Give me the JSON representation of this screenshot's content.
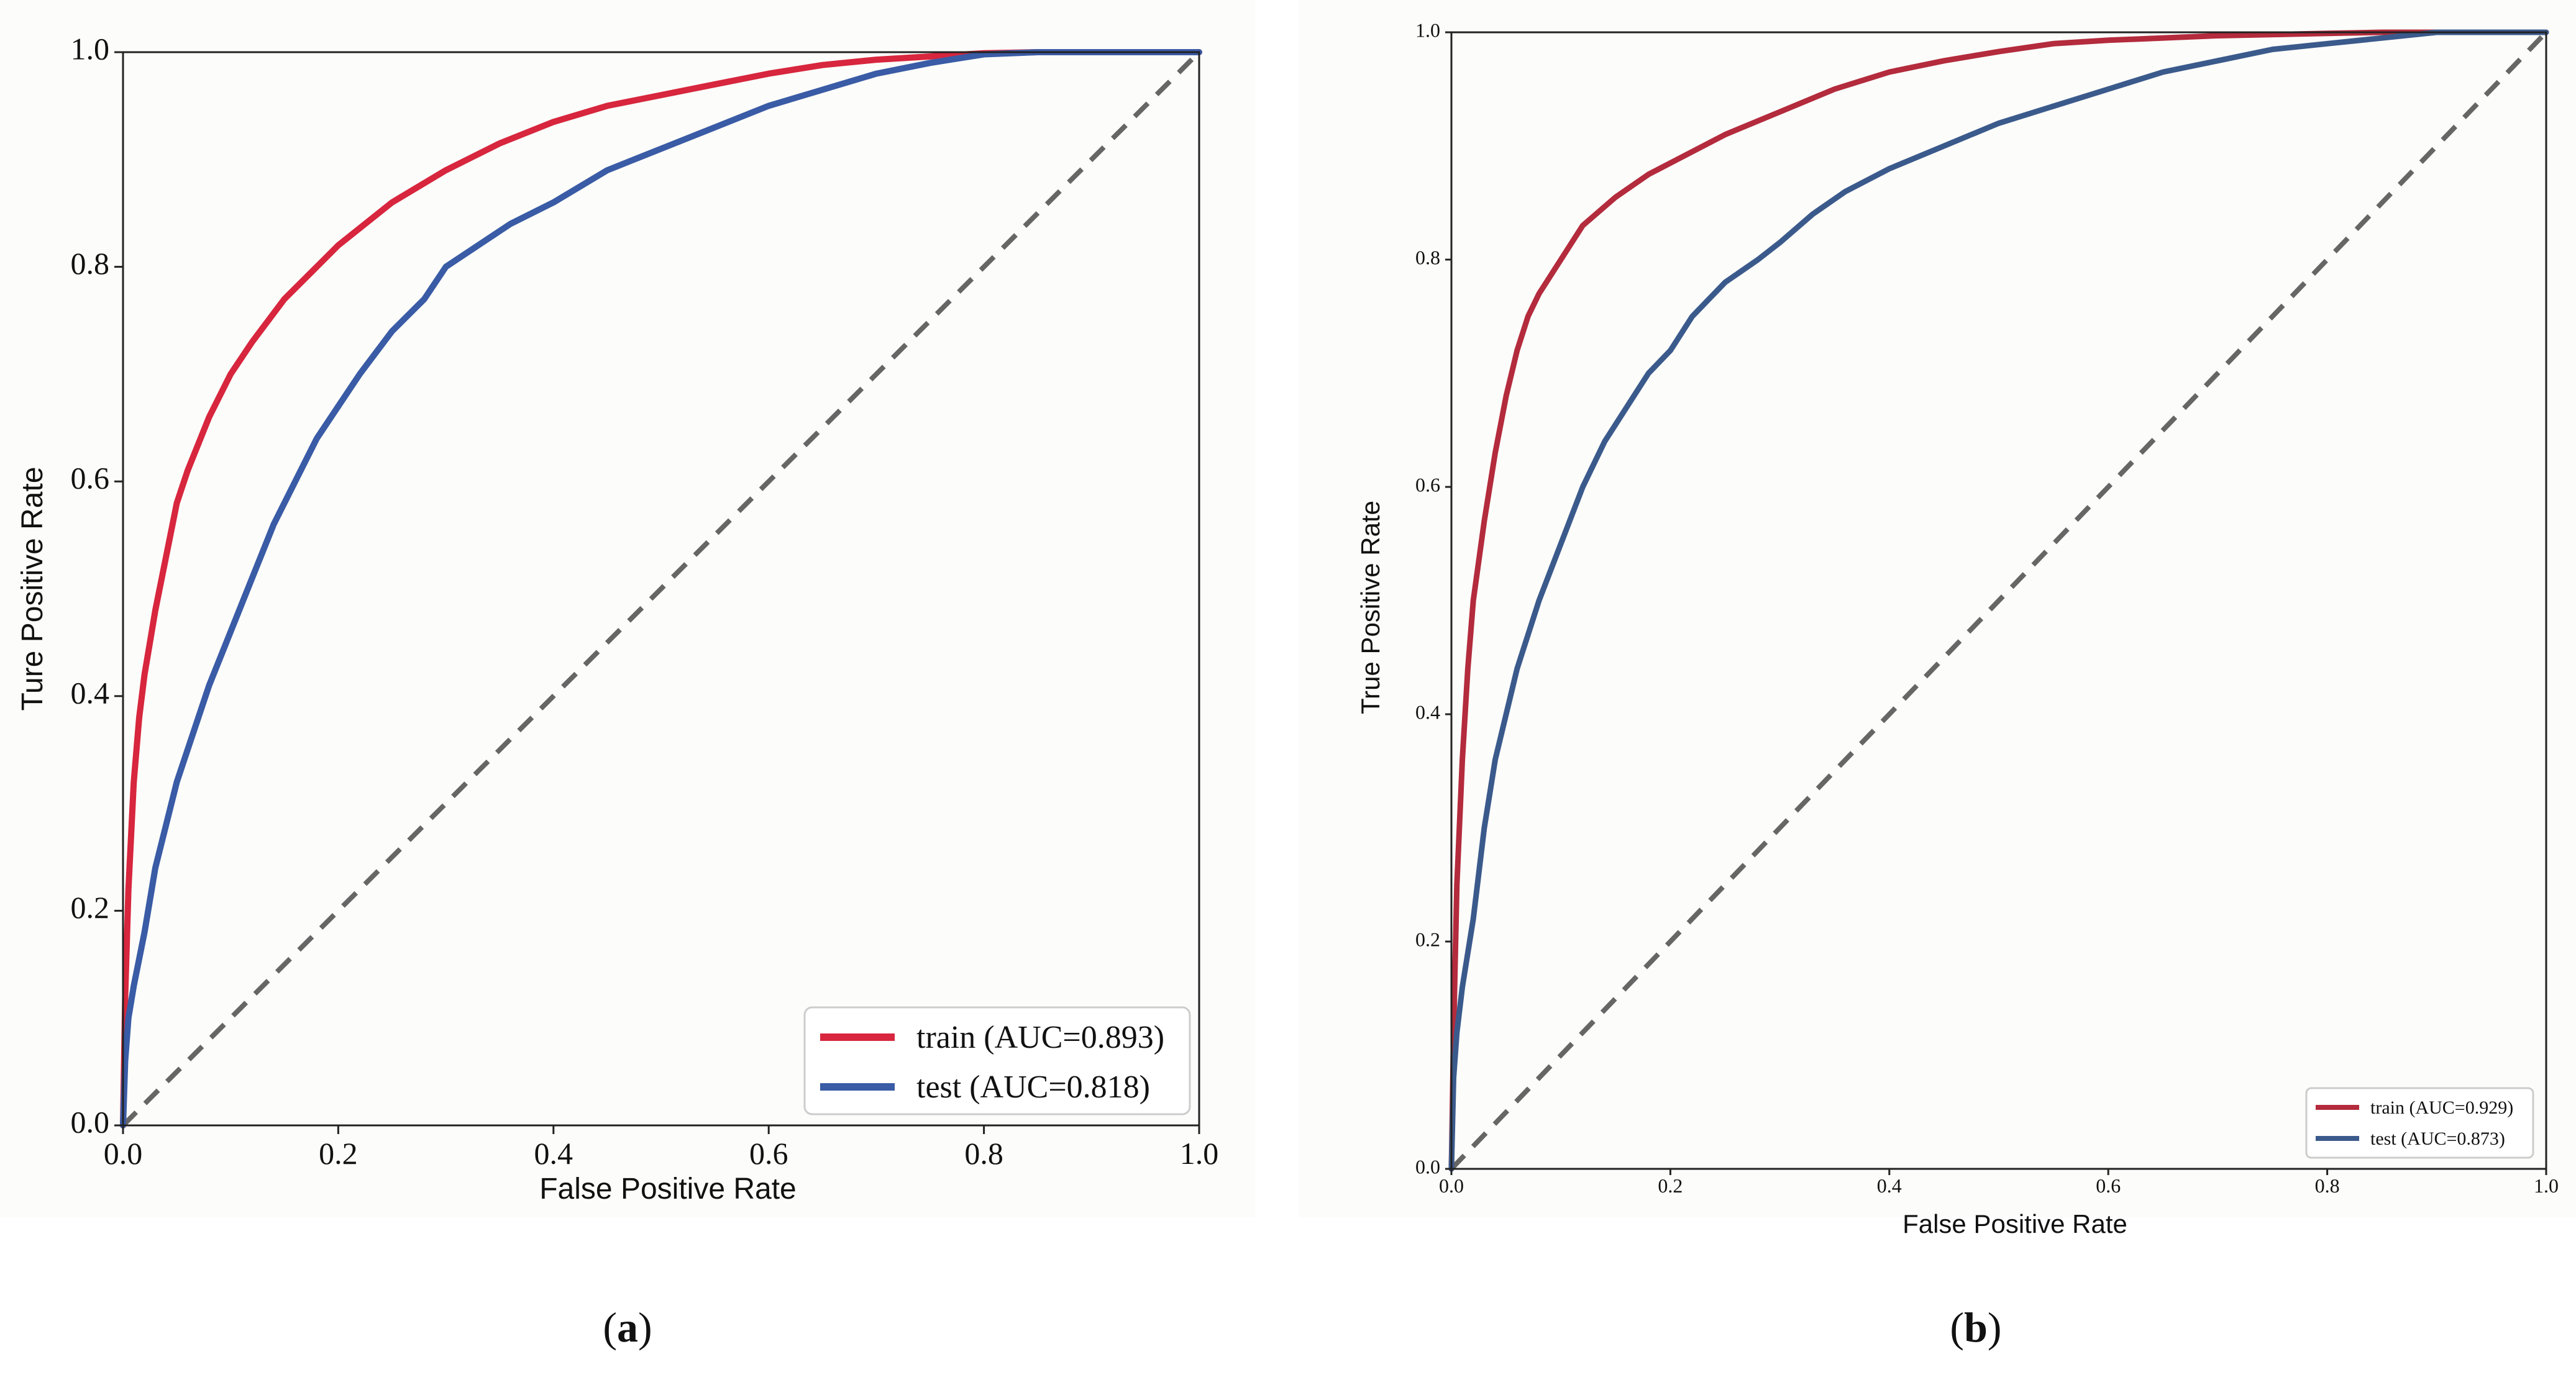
{
  "chart_data": [
    {
      "id": "a",
      "type": "line",
      "caption": "a",
      "xlabel": "False Positive Rate",
      "ylabel": "Ture Positive Rate",
      "xlim": [
        0.0,
        1.0
      ],
      "ylim": [
        0.0,
        1.0
      ],
      "xticks": [
        "0.0",
        "0.2",
        "0.4",
        "0.6",
        "0.8",
        "1.0"
      ],
      "yticks": [
        "0.0",
        "0.2",
        "0.4",
        "0.6",
        "0.8",
        "1.0"
      ],
      "legend_position": "lower-right",
      "series": [
        {
          "name": "train (AUC=0.893)",
          "color": "#d7263d",
          "x": [
            0,
            0.002,
            0.005,
            0.01,
            0.015,
            0.02,
            0.03,
            0.04,
            0.05,
            0.06,
            0.08,
            0.1,
            0.12,
            0.15,
            0.18,
            0.2,
            0.25,
            0.3,
            0.35,
            0.4,
            0.45,
            0.5,
            0.55,
            0.6,
            0.65,
            0.7,
            0.75,
            0.8,
            0.85,
            0.9,
            0.95,
            1.0
          ],
          "y": [
            0,
            0.12,
            0.22,
            0.32,
            0.38,
            0.42,
            0.48,
            0.53,
            0.58,
            0.61,
            0.66,
            0.7,
            0.73,
            0.77,
            0.8,
            0.82,
            0.86,
            0.89,
            0.915,
            0.935,
            0.95,
            0.96,
            0.97,
            0.98,
            0.988,
            0.993,
            0.996,
            0.999,
            1.0,
            1.0,
            1.0,
            1.0
          ]
        },
        {
          "name": "test (AUC=0.818)",
          "color": "#3a5ba5",
          "x": [
            0,
            0.002,
            0.005,
            0.01,
            0.02,
            0.03,
            0.04,
            0.05,
            0.06,
            0.08,
            0.1,
            0.12,
            0.14,
            0.16,
            0.18,
            0.2,
            0.22,
            0.25,
            0.28,
            0.3,
            0.33,
            0.36,
            0.4,
            0.45,
            0.5,
            0.55,
            0.6,
            0.65,
            0.7,
            0.75,
            0.8,
            0.85,
            0.9,
            0.95,
            1.0
          ],
          "y": [
            0,
            0.06,
            0.1,
            0.13,
            0.18,
            0.24,
            0.28,
            0.32,
            0.35,
            0.41,
            0.46,
            0.51,
            0.56,
            0.6,
            0.64,
            0.67,
            0.7,
            0.74,
            0.77,
            0.8,
            0.82,
            0.84,
            0.86,
            0.89,
            0.91,
            0.93,
            0.95,
            0.965,
            0.98,
            0.99,
            0.998,
            1.0,
            1.0,
            1.0,
            1.0
          ]
        }
      ]
    },
    {
      "id": "b",
      "type": "line",
      "caption": "b",
      "xlabel": "False Positive Rate",
      "ylabel": "True Positive Rate",
      "xlim": [
        0.0,
        1.0
      ],
      "ylim": [
        0.0,
        1.0
      ],
      "xticks": [
        "0.0",
        "0.2",
        "0.4",
        "0.6",
        "0.8",
        "1.0"
      ],
      "yticks": [
        "0.0",
        "0.2",
        "0.4",
        "0.6",
        "0.8",
        "1.0"
      ],
      "legend_position": "lower-right",
      "series": [
        {
          "name": "train (AUC=0.929)",
          "color": "#b32b3c",
          "x": [
            0,
            0.002,
            0.005,
            0.01,
            0.015,
            0.02,
            0.03,
            0.04,
            0.05,
            0.06,
            0.07,
            0.08,
            0.1,
            0.12,
            0.15,
            0.18,
            0.2,
            0.25,
            0.3,
            0.35,
            0.4,
            0.45,
            0.5,
            0.55,
            0.6,
            0.7,
            0.8,
            0.85,
            0.9,
            1.0
          ],
          "y": [
            0,
            0.12,
            0.25,
            0.36,
            0.44,
            0.5,
            0.57,
            0.63,
            0.68,
            0.72,
            0.75,
            0.77,
            0.8,
            0.83,
            0.855,
            0.875,
            0.885,
            0.91,
            0.93,
            0.95,
            0.965,
            0.975,
            0.983,
            0.99,
            0.993,
            0.997,
            0.999,
            1.0,
            1.0,
            1.0
          ]
        },
        {
          "name": "test (AUC=0.873)",
          "color": "#3b5a8c",
          "x": [
            0,
            0.002,
            0.005,
            0.01,
            0.02,
            0.03,
            0.04,
            0.05,
            0.06,
            0.08,
            0.1,
            0.12,
            0.14,
            0.16,
            0.18,
            0.2,
            0.22,
            0.25,
            0.28,
            0.3,
            0.33,
            0.36,
            0.4,
            0.45,
            0.5,
            0.55,
            0.6,
            0.65,
            0.7,
            0.75,
            0.8,
            0.85,
            0.9,
            0.95,
            1.0
          ],
          "y": [
            0,
            0.08,
            0.12,
            0.16,
            0.22,
            0.3,
            0.36,
            0.4,
            0.44,
            0.5,
            0.55,
            0.6,
            0.64,
            0.67,
            0.7,
            0.72,
            0.75,
            0.78,
            0.8,
            0.815,
            0.84,
            0.86,
            0.88,
            0.9,
            0.92,
            0.935,
            0.95,
            0.965,
            0.975,
            0.985,
            0.99,
            0.995,
            1.0,
            1.0,
            1.0
          ]
        }
      ]
    }
  ]
}
